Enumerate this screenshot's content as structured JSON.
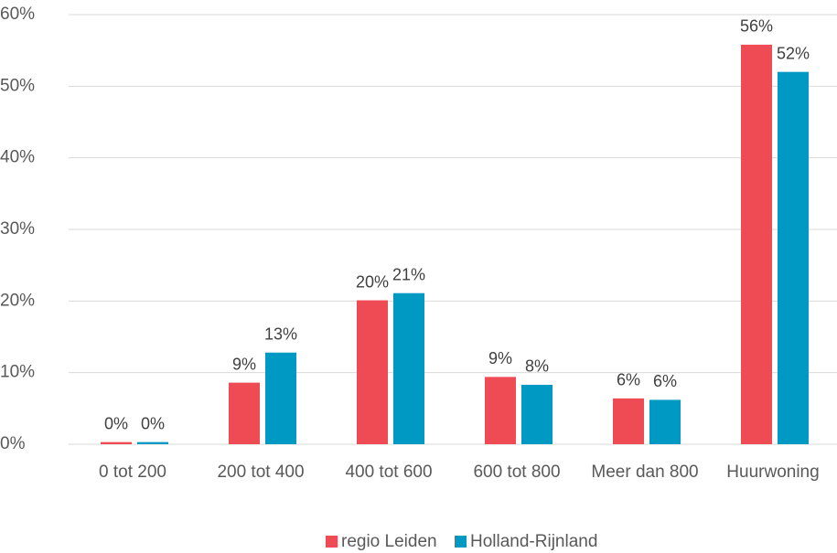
{
  "chart_data": {
    "type": "bar",
    "categories": [
      "0 tot 200",
      "200 tot 400",
      "400 tot 600",
      "600 tot 800",
      "Meer dan 800",
      "Huurwoning"
    ],
    "series": [
      {
        "name": "regio Leiden",
        "color": "#ef4b55",
        "values": [
          0.3,
          8.6,
          20.1,
          9.4,
          6.4,
          55.8
        ],
        "value_labels": [
          "0%",
          "9%",
          "20%",
          "9%",
          "6%",
          "56%"
        ]
      },
      {
        "name": "Holland-Rijnland",
        "color": "#0099c4",
        "values": [
          0.3,
          12.8,
          21.1,
          8.3,
          6.2,
          52.0
        ],
        "value_labels": [
          "0%",
          "13%",
          "21%",
          "8%",
          "6%",
          "52%"
        ]
      }
    ],
    "ylim": [
      0,
      60
    ],
    "yticks": [
      {
        "value": 0,
        "label": "0%"
      },
      {
        "value": 10,
        "label": "10%"
      },
      {
        "value": 20,
        "label": "20%"
      },
      {
        "value": 30,
        "label": "30%"
      },
      {
        "value": 40,
        "label": "40%"
      },
      {
        "value": 50,
        "label": "50%"
      },
      {
        "value": 60,
        "label": "60%"
      }
    ],
    "grid": true,
    "legend": "bottom"
  }
}
